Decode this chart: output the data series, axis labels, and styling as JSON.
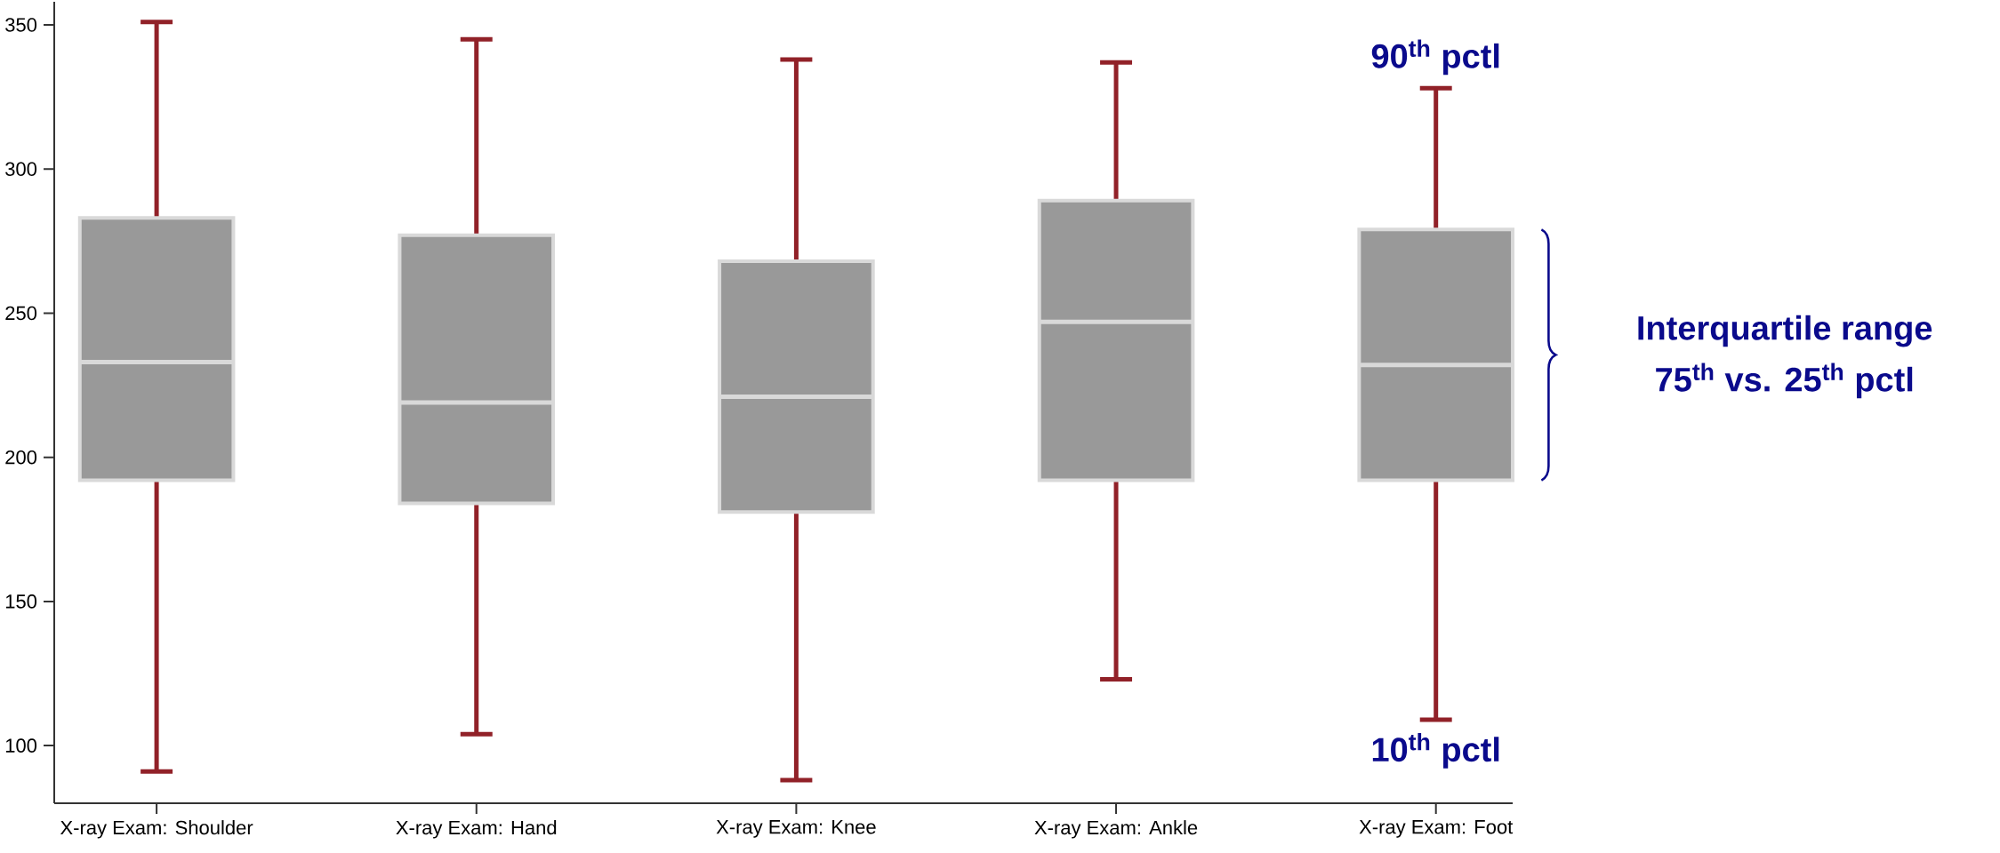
{
  "chart_data": {
    "type": "box",
    "categories": [
      "X-ray Exam: Shoulder",
      "X-ray Exam: Hand",
      "X-ray Exam: Knee",
      "X-ray Exam: Ankle",
      "X-ray Exam: Foot"
    ],
    "series": [
      {
        "color": "#999999",
        "boxes": [
          {
            "low": 91,
            "q1": 192,
            "median": 233,
            "q3": 283,
            "high": 351
          },
          {
            "low": 104,
            "q1": 184,
            "median": 219,
            "q3": 277,
            "high": 345
          },
          {
            "low": 88,
            "q1": 181,
            "median": 221,
            "q3": 268,
            "high": 338
          },
          {
            "low": 123,
            "q1": 192,
            "median": 247,
            "q3": 289,
            "high": 337
          },
          {
            "low": 109,
            "q1": 192,
            "median": 232,
            "q3": 279,
            "high": 328
          }
        ]
      }
    ],
    "ylim": [
      80,
      358
    ],
    "yticks": [
      100,
      150,
      200,
      250,
      300,
      350
    ],
    "annotations": [
      "90$^{th}$ pctl",
      "10$^{th}$ pctl",
      "Interquartile range",
      "75$^{th}$ vs. 25$^{th}$ pctl"
    ]
  }
}
